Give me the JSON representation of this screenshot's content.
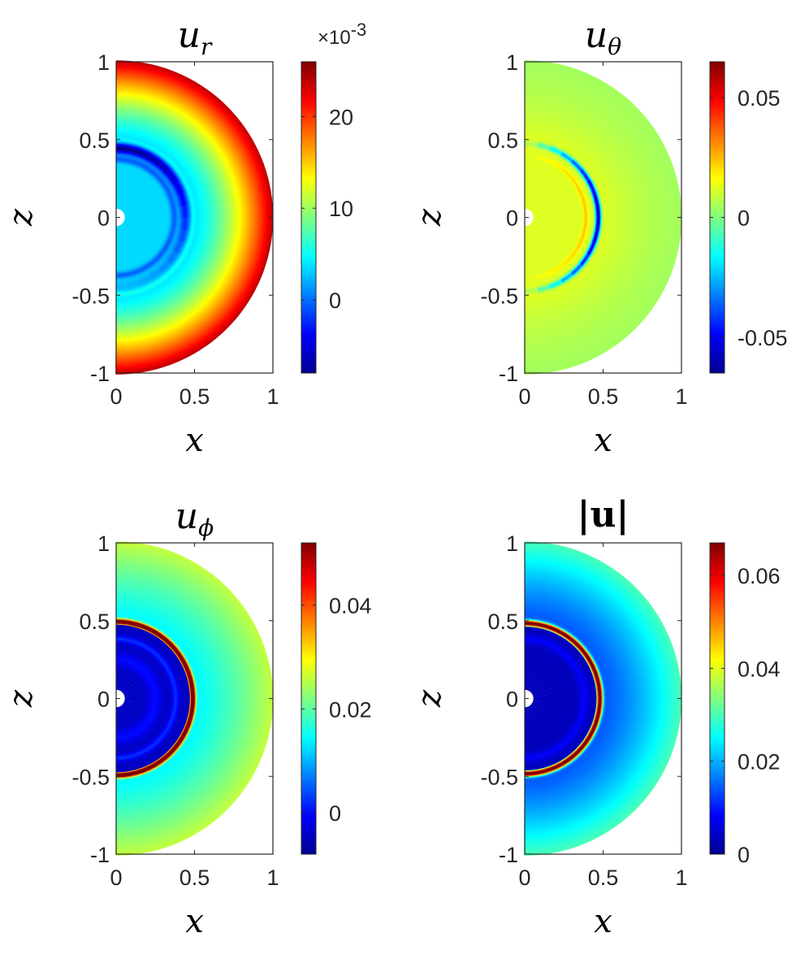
{
  "chart_data": [
    {
      "type": "heatmap",
      "title": "u",
      "title_sub": "r",
      "xlabel": "x",
      "ylabel": "z",
      "xlim": [
        0,
        1
      ],
      "ylim": [
        -1,
        1
      ],
      "x_ticks": [
        "0",
        "0.5",
        "1"
      ],
      "y_ticks": [
        "1",
        "0.5",
        "0",
        "-0.5",
        "-1"
      ],
      "clim": [
        -0.008,
        0.026
      ],
      "colorbar_exponent_prefix": "×10",
      "colorbar_exponent": "-3",
      "colorbar_ticks": [
        {
          "value": 0.02,
          "label": "20"
        },
        {
          "value": 0.01,
          "label": "10"
        },
        {
          "value": 0.0,
          "label": "0"
        }
      ],
      "colormap": "jet",
      "field": "ur"
    },
    {
      "type": "heatmap",
      "title": "u",
      "title_sub": "θ",
      "xlabel": "x",
      "ylabel": "z",
      "xlim": [
        0,
        1
      ],
      "ylim": [
        -1,
        1
      ],
      "x_ticks": [
        "0",
        "0.5",
        "1"
      ],
      "y_ticks": [
        "1",
        "0.5",
        "0",
        "-0.5",
        "-1"
      ],
      "clim": [
        -0.065,
        0.065
      ],
      "colorbar_ticks": [
        {
          "value": 0.05,
          "label": "0.05"
        },
        {
          "value": 0.0,
          "label": "0"
        },
        {
          "value": -0.05,
          "label": "-0.05"
        }
      ],
      "colormap": "jet",
      "field": "ut"
    },
    {
      "type": "heatmap",
      "title": "u",
      "title_sub": "ϕ",
      "xlabel": "x",
      "ylabel": "z",
      "xlim": [
        0,
        1
      ],
      "ylim": [
        -1,
        1
      ],
      "x_ticks": [
        "0",
        "0.5",
        "1"
      ],
      "y_ticks": [
        "1",
        "0.5",
        "0",
        "-0.5",
        "-1"
      ],
      "clim": [
        -0.008,
        0.052
      ],
      "colorbar_ticks": [
        {
          "value": 0.04,
          "label": "0.04"
        },
        {
          "value": 0.02,
          "label": "0.02"
        },
        {
          "value": 0.0,
          "label": "0"
        }
      ],
      "colormap": "jet",
      "field": "up"
    },
    {
      "type": "heatmap",
      "title": "|u|",
      "xlabel": "x",
      "ylabel": "z",
      "xlim": [
        0,
        1
      ],
      "ylim": [
        -1,
        1
      ],
      "x_ticks": [
        "0",
        "0.5",
        "1"
      ],
      "y_ticks": [
        "1",
        "0.5",
        "0",
        "-0.5",
        "-1"
      ],
      "clim": [
        0,
        0.067
      ],
      "colorbar_ticks": [
        {
          "value": 0.06,
          "label": "0.06"
        },
        {
          "value": 0.04,
          "label": "0.04"
        },
        {
          "value": 0.02,
          "label": "0.02"
        },
        {
          "value": 0.0,
          "label": "0"
        }
      ],
      "colormap": "jet",
      "field": "um"
    }
  ]
}
